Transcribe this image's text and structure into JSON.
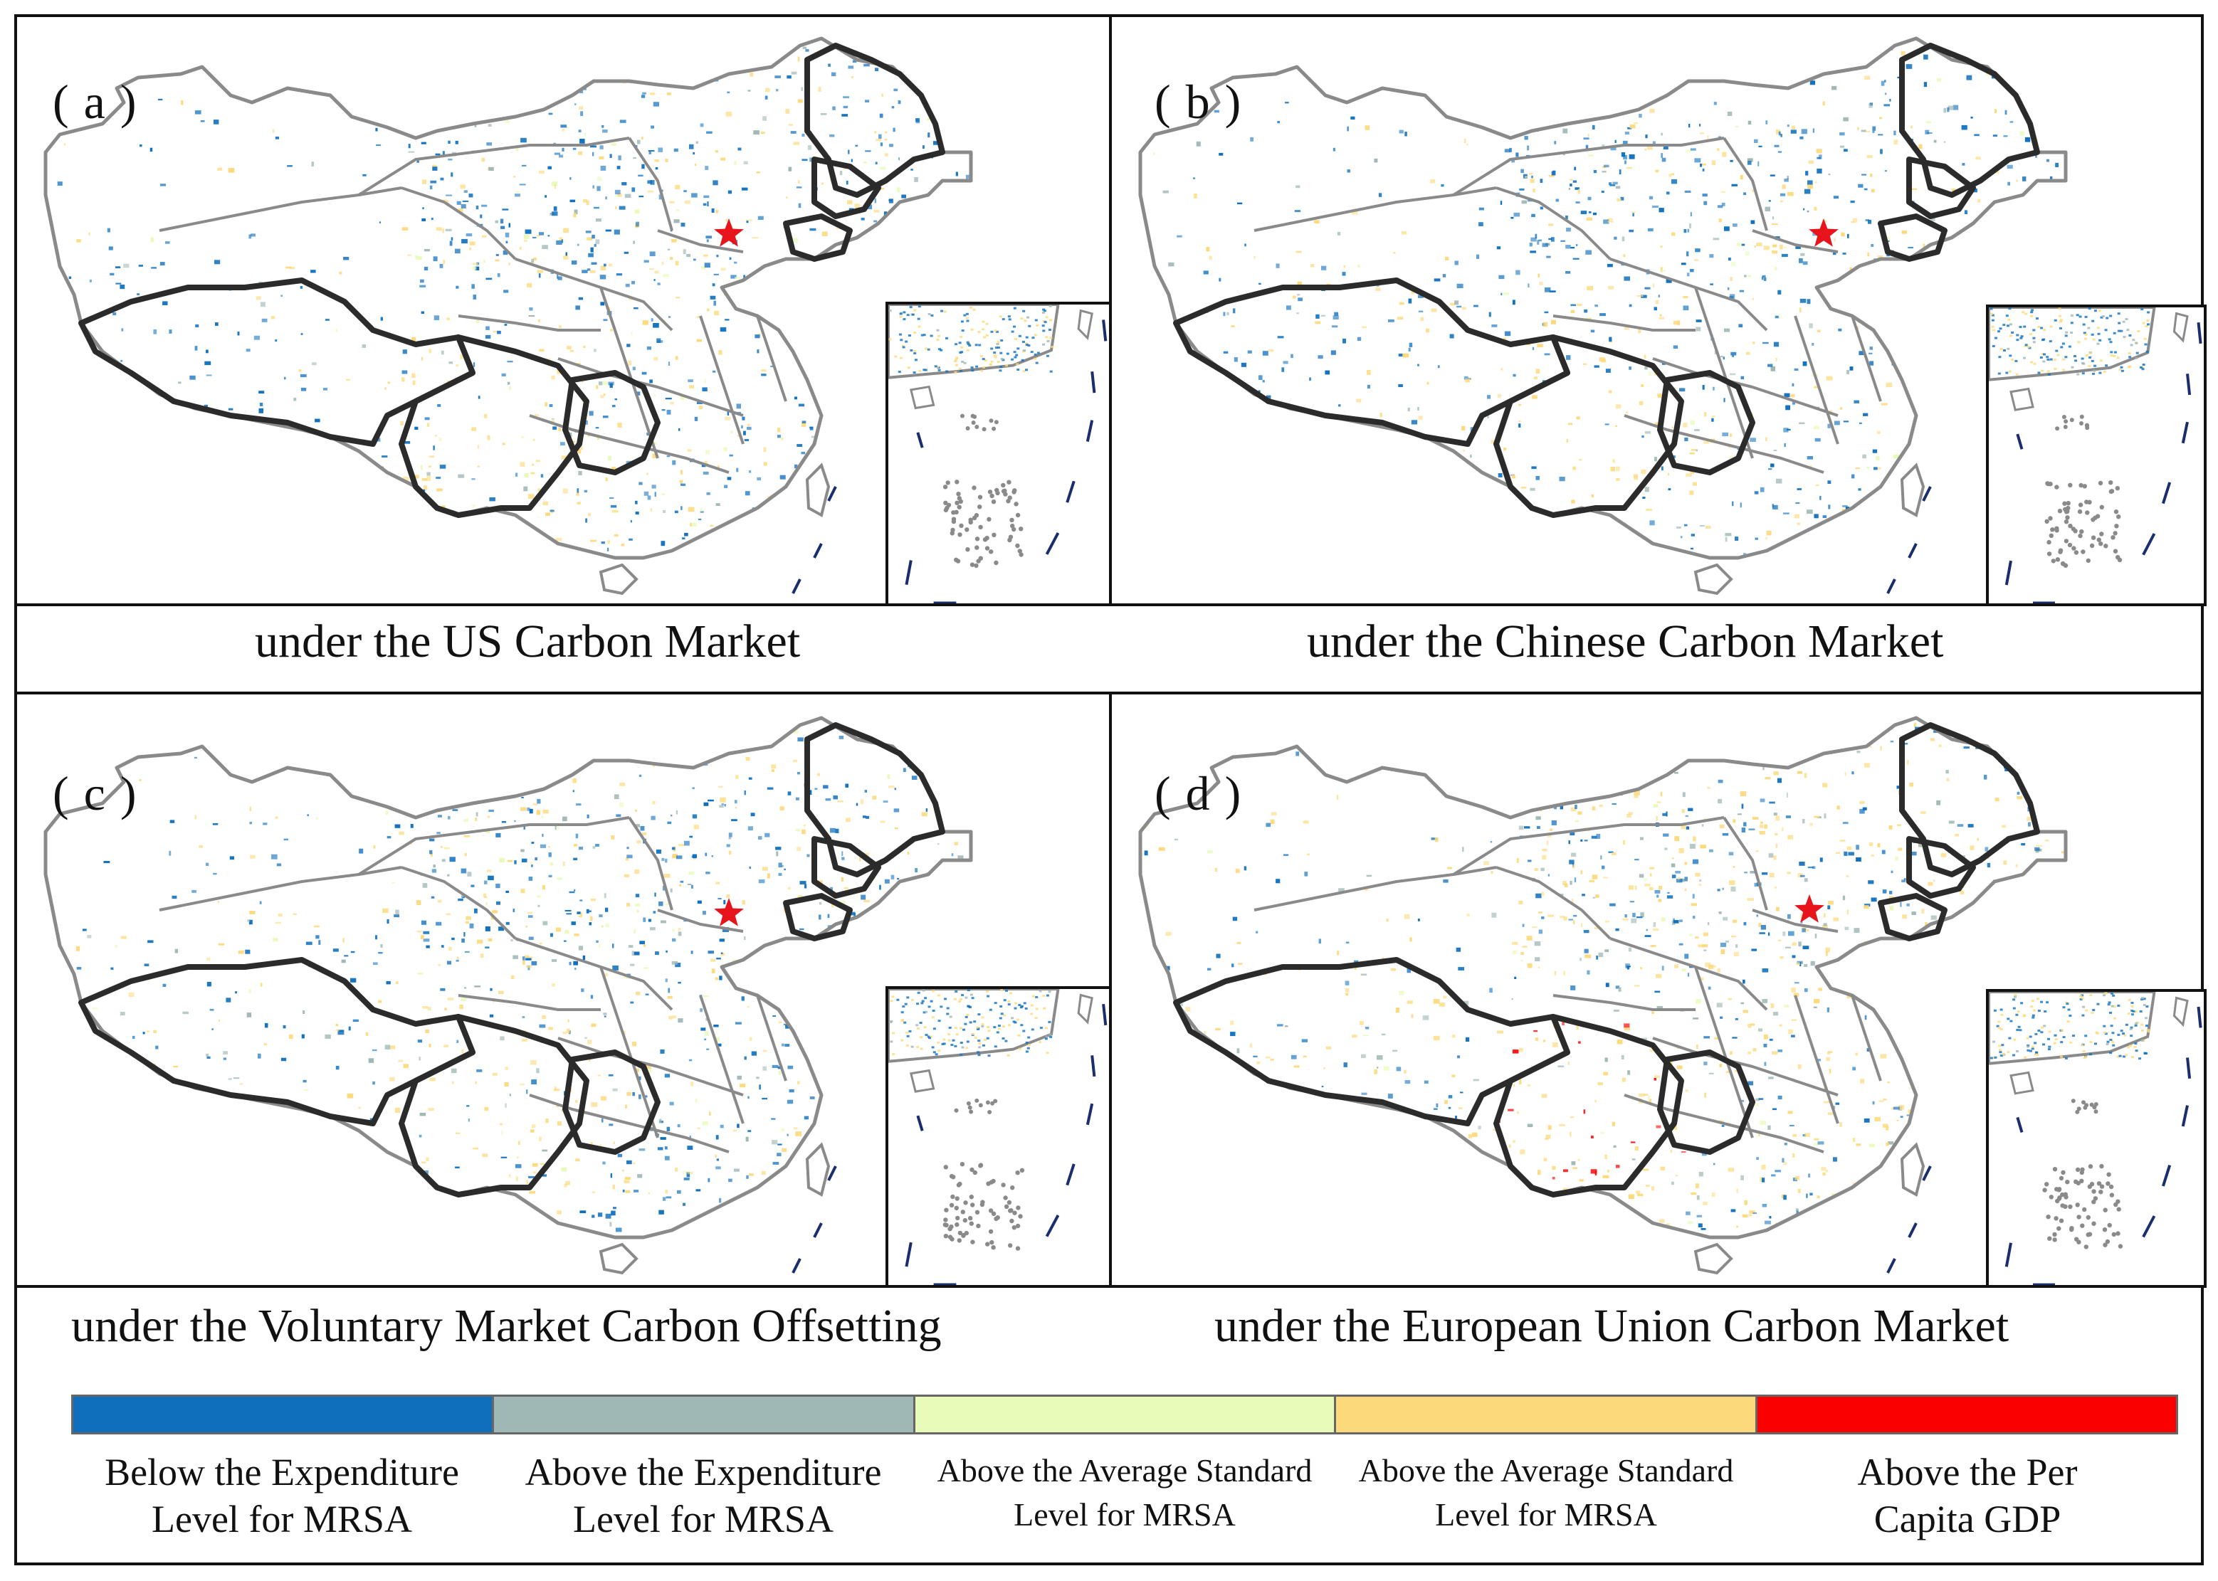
{
  "panels": [
    {
      "label": "( a )",
      "caption": "under the US Carbon Market",
      "scheme": "blue"
    },
    {
      "label": "( b )",
      "caption": "under the Chinese Carbon Market",
      "scheme": "blue"
    },
    {
      "label": "( c )",
      "caption": "under the Voluntary Market Carbon Offsetting",
      "scheme": "blue-light"
    },
    {
      "label": "( d )",
      "caption": "under the European Union Carbon Market",
      "scheme": "orange"
    }
  ],
  "legend": {
    "items": [
      {
        "line1": "Below the Expenditure",
        "line2": "Level for MRSA",
        "color": "#0f6fbd"
      },
      {
        "line1": "Above the Expenditure",
        "line2": "Level for MRSA",
        "color": "#9fb7b5"
      },
      {
        "line1": "Above the Average Standard",
        "line2": "Level for MRSA",
        "color": "#e8fbb8"
      },
      {
        "line1": "Above the Average Standard",
        "line2": "Level for MRSA",
        "color": "#fcd97a"
      },
      {
        "line1": "Above the Per",
        "line2": "Capita GDP",
        "color": "#fb0000"
      }
    ]
  },
  "colors": {
    "boundary_gray": "#8a8a8a",
    "highlight_border": "#2b2b2b",
    "capital_star": "#e8141c",
    "dash_line": "#1a2e6e"
  },
  "icons": {
    "capital": "star-icon"
  }
}
